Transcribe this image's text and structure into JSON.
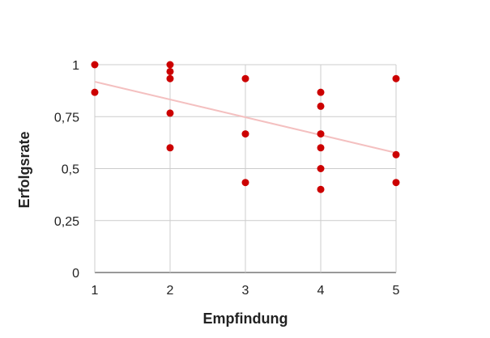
{
  "chart_data": {
    "type": "scatter",
    "title": "",
    "xlabel": "Empfindung",
    "ylabel": "Erfolgsrate",
    "xlim": [
      1,
      5
    ],
    "ylim": [
      0,
      1
    ],
    "x_ticks": [
      1,
      2,
      3,
      4,
      5
    ],
    "x_tick_labels": [
      "1",
      "2",
      "3",
      "4",
      "5"
    ],
    "y_ticks": [
      0,
      0.25,
      0.5,
      0.75,
      1
    ],
    "y_tick_labels": [
      "0",
      "0,25",
      "0,5",
      "0,75",
      "1"
    ],
    "grid": true,
    "legend": "none",
    "point_color": "#cc0000",
    "trendline_color": "#f4c0c0",
    "points": [
      {
        "x": 1,
        "y": 1.0
      },
      {
        "x": 1,
        "y": 0.867
      },
      {
        "x": 2,
        "y": 1.0
      },
      {
        "x": 2,
        "y": 0.967
      },
      {
        "x": 2,
        "y": 0.933
      },
      {
        "x": 2,
        "y": 0.767
      },
      {
        "x": 2,
        "y": 0.6
      },
      {
        "x": 3,
        "y": 0.933
      },
      {
        "x": 3,
        "y": 0.667
      },
      {
        "x": 3,
        "y": 0.433
      },
      {
        "x": 4,
        "y": 0.867
      },
      {
        "x": 4,
        "y": 0.8
      },
      {
        "x": 4,
        "y": 0.667
      },
      {
        "x": 4,
        "y": 0.6
      },
      {
        "x": 4,
        "y": 0.5
      },
      {
        "x": 4,
        "y": 0.4
      },
      {
        "x": 5,
        "y": 0.933
      },
      {
        "x": 5,
        "y": 0.567
      },
      {
        "x": 5,
        "y": 0.433
      }
    ],
    "trendline": {
      "x": [
        1,
        5
      ],
      "y": [
        0.918,
        0.576
      ]
    }
  }
}
